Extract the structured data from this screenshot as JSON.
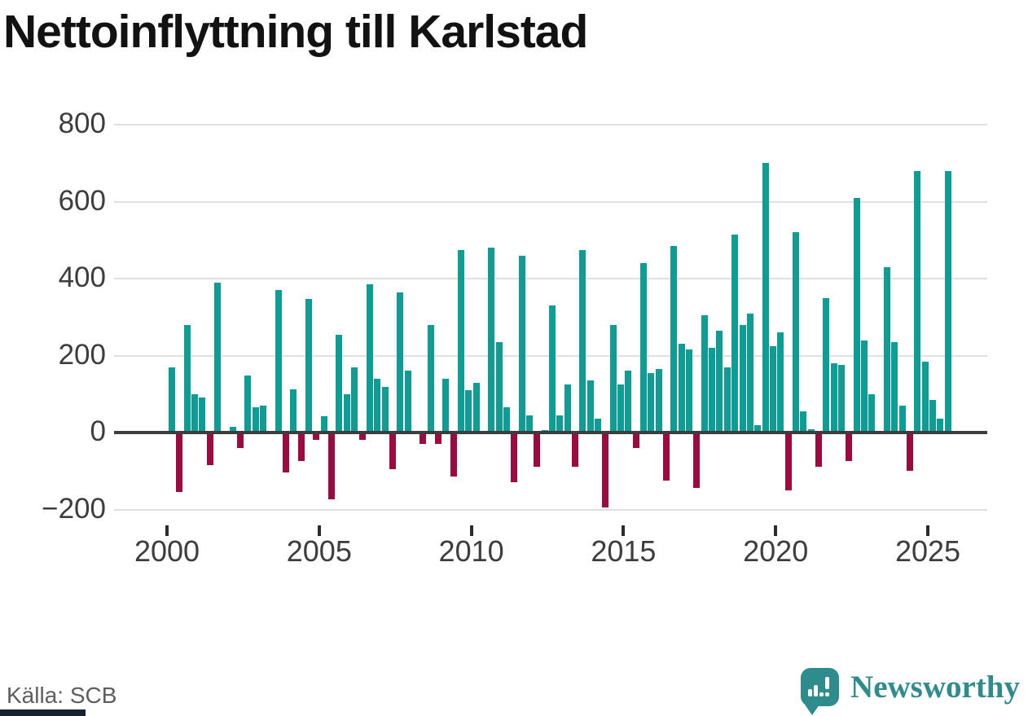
{
  "title": "Nettoinflyttning till Karlstad",
  "source": "Källa: SCB",
  "brand": {
    "name": "Newsworthy",
    "icon": "bar-chart-speech-bubble-icon"
  },
  "colors": {
    "positive": "#0e9d95",
    "negative": "#9c0a3f",
    "axis": "#3d3d3d",
    "grid": "#e0e0e0",
    "tick_text": "#3d3d3d",
    "title": "#121212",
    "source": "#5e5e5e",
    "brand": "#2f8c8c",
    "bottom_bar": "#16222f"
  },
  "chart_data": {
    "type": "bar",
    "title": "Nettoinflyttning till Karlstad",
    "xlabel": "",
    "ylabel": "",
    "x_frequency": "quarterly",
    "x_start": "2000 Q1",
    "x_end": "2025 Q3",
    "x_tick_labels": [
      "2000",
      "2005",
      "2010",
      "2015",
      "2020",
      "2025"
    ],
    "y_ticks": [
      800,
      600,
      400,
      200,
      0,
      -200
    ],
    "y_tick_labels": [
      "800",
      "600",
      "400",
      "200",
      "0",
      "−200"
    ],
    "ylim": [
      -200,
      800
    ],
    "grid": true,
    "legend": false,
    "positive_color_meaning": "net in-migration",
    "negative_color_meaning": "net out-migration",
    "values": [
      170,
      -150,
      280,
      100,
      90,
      -80,
      390,
      0,
      15,
      -35,
      148,
      65,
      70,
      0,
      370,
      -100,
      113,
      -70,
      348,
      -15,
      42,
      -170,
      255,
      100,
      170,
      -15,
      385,
      140,
      118,
      -90,
      365,
      160,
      0,
      -25,
      280,
      -25,
      140,
      -110,
      475,
      110,
      130,
      0,
      480,
      235,
      65,
      -125,
      460,
      45,
      -85,
      7,
      330,
      45,
      125,
      -85,
      475,
      135,
      35,
      -190,
      280,
      125,
      160,
      -35,
      440,
      155,
      165,
      -120,
      485,
      230,
      215,
      -140,
      305,
      220,
      265,
      170,
      515,
      280,
      310,
      20,
      700,
      225,
      260,
      -145,
      520,
      55,
      8,
      -85,
      350,
      180,
      175,
      -70,
      610,
      240,
      100,
      0,
      430,
      235,
      70,
      -95,
      680,
      185,
      85,
      35,
      680
    ]
  }
}
